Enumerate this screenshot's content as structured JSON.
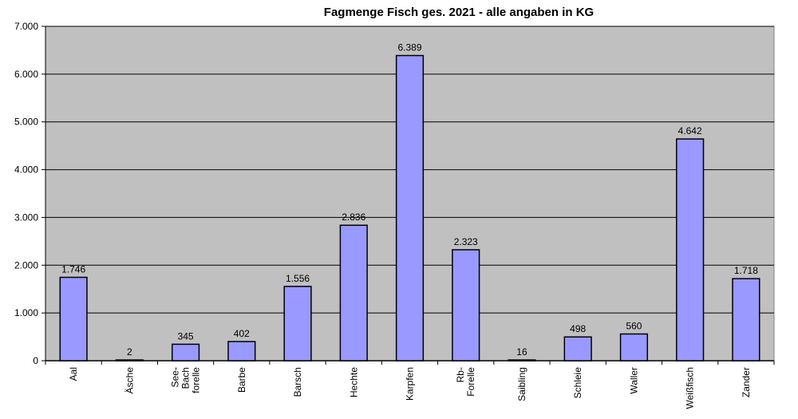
{
  "chart_data": {
    "type": "bar",
    "title": "Fagmenge Fisch ges. 2021 - alle angaben in KG",
    "xlabel": "",
    "ylabel": "",
    "categories": [
      [
        "Aal"
      ],
      [
        "Äsche"
      ],
      [
        "See-",
        "Bach",
        "forelle"
      ],
      [
        "Barbe"
      ],
      [
        "Barsch"
      ],
      [
        "Hechte"
      ],
      [
        "Karpfen"
      ],
      [
        "Rb-",
        "Forelle"
      ],
      [
        "Saibling"
      ],
      [
        "Schleie"
      ],
      [
        "Waller"
      ],
      [
        "Weißfisch"
      ],
      [
        "Zander"
      ]
    ],
    "values": [
      1746,
      2,
      345,
      402,
      1556,
      2836,
      6389,
      2323,
      16,
      498,
      560,
      4642,
      1718
    ],
    "value_labels": [
      "1.746",
      "2",
      "345",
      "402",
      "1.556",
      "2.836",
      "6.389",
      "2.323",
      "16",
      "498",
      "560",
      "4.642",
      "1.718"
    ],
    "ylim": [
      0,
      7000
    ],
    "yticks": [
      0,
      1000,
      2000,
      3000,
      4000,
      5000,
      6000,
      7000
    ],
    "ytick_labels": [
      "0",
      "1.000",
      "2.000",
      "3.000",
      "4.000",
      "5.000",
      "6.000",
      "7.000"
    ],
    "grid": true,
    "legend": "none",
    "colors": {
      "bar_fill": "#9999ff",
      "bar_stroke": "#000000",
      "plot_bg": "#c0c0c0",
      "gridline": "#000000"
    }
  }
}
